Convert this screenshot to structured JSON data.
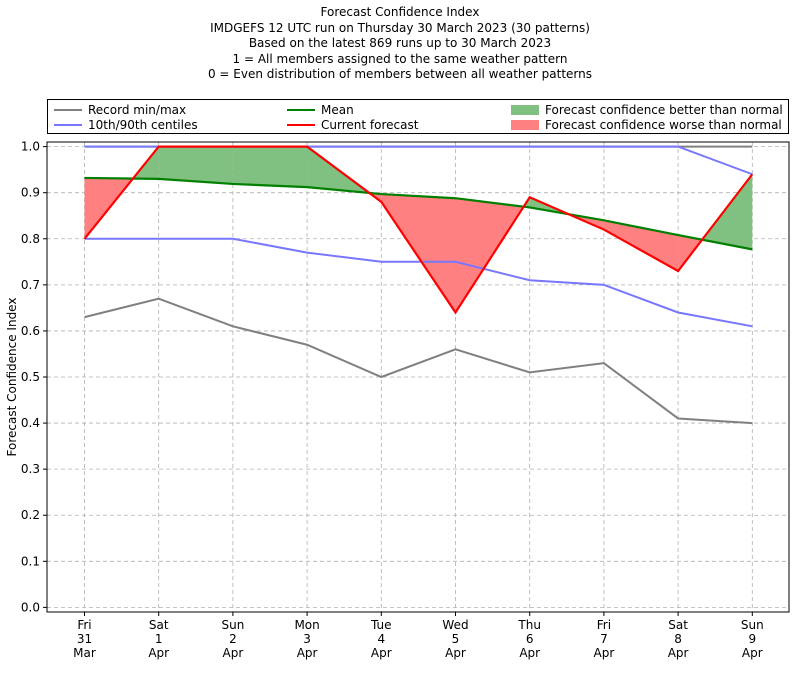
{
  "titles": [
    "Forecast Confidence Index",
    "IMDGEFS 12 UTC run on Thursday 30 March 2023 (30 patterns)",
    "Based on the latest 869 runs up to 30 March 2023",
    "1 = All members assigned to the same weather pattern",
    "0 = Even distribution of members between all weather patterns"
  ],
  "legend": {
    "record": "Record min/max",
    "centiles": "10th/90th centiles",
    "mean": "Mean",
    "current": "Current forecast",
    "better": "Forecast confidence better than normal",
    "worse": "Forecast confidence worse than normal"
  },
  "colors": {
    "record": "#808080",
    "centiles": "#7777ff",
    "mean": "#008000",
    "current": "#ff0000",
    "better": "#80c080",
    "worse": "#ff8080",
    "axis_top_line": "#3333cc"
  },
  "chart_data": {
    "type": "line",
    "ylabel": "Forecast Confidence Index",
    "ylim": [
      -0.01,
      1.01
    ],
    "yticks": [
      "0.0",
      "0.1",
      "0.2",
      "0.3",
      "0.4",
      "0.5",
      "0.6",
      "0.7",
      "0.8",
      "0.9",
      "1.0"
    ],
    "grid": true,
    "legend_position": "top",
    "categories": [
      [
        "Fri",
        "31",
        "Mar"
      ],
      [
        "Sat",
        "1",
        "Apr"
      ],
      [
        "Sun",
        "2",
        "Apr"
      ],
      [
        "Mon",
        "3",
        "Apr"
      ],
      [
        "Tue",
        "4",
        "Apr"
      ],
      [
        "Wed",
        "5",
        "Apr"
      ],
      [
        "Thu",
        "6",
        "Apr"
      ],
      [
        "Fri",
        "7",
        "Apr"
      ],
      [
        "Sat",
        "8",
        "Apr"
      ],
      [
        "Sun",
        "9",
        "Apr"
      ]
    ],
    "series": {
      "record_max": [
        1.0,
        1.0,
        1.0,
        1.0,
        1.0,
        1.0,
        1.0,
        1.0,
        1.0,
        1.0
      ],
      "record_min": [
        0.63,
        0.67,
        0.61,
        0.57,
        0.5,
        0.56,
        0.51,
        0.53,
        0.41,
        0.4
      ],
      "centile_90": [
        1.0,
        1.0,
        1.0,
        1.0,
        1.0,
        1.0,
        1.0,
        1.0,
        1.0,
        0.94
      ],
      "centile_10": [
        0.8,
        0.8,
        0.8,
        0.77,
        0.75,
        0.75,
        0.71,
        0.7,
        0.64,
        0.61
      ],
      "mean": [
        0.932,
        0.93,
        0.919,
        0.912,
        0.897,
        0.888,
        0.868,
        0.84,
        0.808,
        0.777
      ],
      "current": [
        0.8,
        1.0,
        1.0,
        1.0,
        0.88,
        0.64,
        0.89,
        0.82,
        0.73,
        0.94
      ]
    }
  }
}
